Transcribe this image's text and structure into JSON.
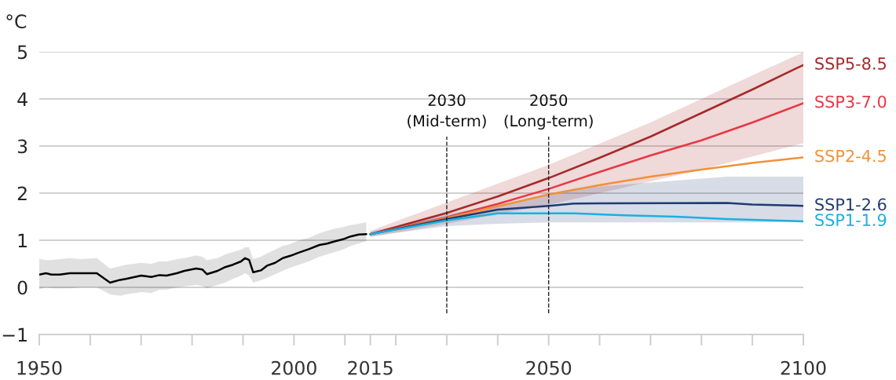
{
  "chart_data": {
    "type": "line",
    "ylabel": "°C",
    "xlim": [
      1950,
      2100
    ],
    "ylim": [
      -1,
      5
    ],
    "yticks": [
      -1,
      0,
      1,
      2,
      3,
      4,
      5
    ],
    "xticks": [
      1950,
      {
        "value": 1960,
        "label": null
      },
      {
        "value": 1970,
        "label": null
      },
      {
        "value": 1980,
        "label": null
      },
      {
        "value": 1990,
        "label": null
      },
      2000,
      {
        "value": 2010,
        "label": null
      },
      2015,
      {
        "value": 2020,
        "label": null
      },
      {
        "value": 2030,
        "label": null
      },
      {
        "value": 2040,
        "label": null
      },
      2050,
      {
        "value": 2060,
        "label": null
      },
      {
        "value": 2070,
        "label": null
      },
      {
        "value": 2080,
        "label": null
      },
      {
        "value": 2090,
        "label": null
      },
      2100
    ],
    "grid": "y",
    "legend": false,
    "marker": "none",
    "line_style": "solid",
    "series": [
      {
        "color": "#000000",
        "x": [
          1950,
          1951.3,
          1952.4,
          1954,
          1956,
          1958,
          1961.3,
          1963.9,
          1965.9,
          1967,
          1970,
          1972,
          1973.6,
          1975,
          1977,
          1978.5,
          1980.8,
          1982,
          1982.9,
          1985,
          1986.5,
          1988,
          1989.6,
          1990.4,
          1991.2,
          1992,
          1993.5,
          1994.7,
          1996.3,
          1997.8,
          1999.3,
          2001,
          2002.9,
          2005,
          2006.5,
          2008.1,
          2009.6,
          2011.1,
          2012.7,
          2014.2
        ],
        "values": [
          0.27,
          0.3,
          0.27,
          0.27,
          0.3,
          0.3,
          0.3,
          0.1,
          0.16,
          0.18,
          0.25,
          0.22,
          0.26,
          0.25,
          0.3,
          0.35,
          0.4,
          0.38,
          0.28,
          0.35,
          0.43,
          0.48,
          0.55,
          0.62,
          0.58,
          0.32,
          0.36,
          0.46,
          0.52,
          0.62,
          0.67,
          0.74,
          0.81,
          0.9,
          0.93,
          0.98,
          1.02,
          1.08,
          1.12,
          1.13
        ],
        "lower": [
          -0.04,
          0.0,
          -0.02,
          -0.02,
          -0.02,
          0.0,
          0.0,
          -0.15,
          -0.18,
          -0.15,
          -0.1,
          -0.12,
          -0.05,
          -0.05,
          0.0,
          0.02,
          0.05,
          0.03,
          -0.02,
          0.05,
          0.1,
          0.18,
          0.25,
          0.3,
          0.25,
          0.1,
          0.15,
          0.2,
          0.28,
          0.35,
          0.42,
          0.48,
          0.55,
          0.65,
          0.7,
          0.75,
          0.8,
          0.88,
          0.93,
          0.98
        ],
        "upper": [
          0.61,
          0.58,
          0.58,
          0.6,
          0.62,
          0.6,
          0.62,
          0.4,
          0.45,
          0.48,
          0.52,
          0.5,
          0.55,
          0.55,
          0.6,
          0.62,
          0.68,
          0.65,
          0.58,
          0.62,
          0.7,
          0.75,
          0.8,
          0.85,
          0.85,
          0.6,
          0.65,
          0.72,
          0.8,
          0.88,
          0.92,
          1.0,
          1.05,
          1.15,
          1.2,
          1.25,
          1.28,
          1.32,
          1.35,
          1.38
        ]
      },
      {
        "name": "SSP5-8.5",
        "color": "#a52a2a",
        "x": [
          2015,
          2030,
          2040,
          2050,
          2060,
          2070,
          2080,
          2090,
          2100
        ],
        "values": [
          1.13,
          1.58,
          1.93,
          2.32,
          2.75,
          3.2,
          3.7,
          4.2,
          4.72
        ],
        "lower": [
          1.07,
          1.35,
          1.55,
          1.75,
          2.0,
          2.25,
          2.5,
          2.78,
          3.06
        ],
        "upper": [
          1.2,
          1.8,
          2.2,
          2.6,
          3.05,
          3.5,
          4.0,
          4.5,
          4.99
        ]
      },
      {
        "name": "SSP3-7.0",
        "color": "#e63946",
        "x": [
          2015,
          2030,
          2040,
          2050,
          2060,
          2070,
          2080,
          2090,
          2100
        ],
        "values": [
          1.13,
          1.49,
          1.77,
          2.09,
          2.45,
          2.8,
          3.12,
          3.5,
          3.91
        ]
      },
      {
        "name": "SSP2-4.5",
        "color": "#f0913a",
        "x": [
          2015,
          2030,
          2040,
          2050,
          2060,
          2070,
          2080,
          2090,
          2100
        ],
        "values": [
          1.13,
          1.47,
          1.72,
          1.97,
          2.17,
          2.35,
          2.5,
          2.64,
          2.76
        ]
      },
      {
        "name": "SSP1-2.6",
        "color": "#1f3c73",
        "x": [
          2015,
          2030,
          2040,
          2050,
          2055,
          2085,
          2090,
          2100
        ],
        "values": [
          1.13,
          1.45,
          1.65,
          1.73,
          1.78,
          1.79,
          1.76,
          1.73
        ],
        "lower": [
          1.08,
          1.3,
          1.35,
          1.38,
          1.38,
          1.38,
          1.38,
          1.39
        ],
        "upper": [
          1.18,
          1.55,
          1.75,
          1.95,
          2.1,
          2.35,
          2.35,
          2.35
        ]
      },
      {
        "name": "SSP1-1.9",
        "color": "#1ab0e0",
        "x": [
          2015,
          2030,
          2040,
          2055,
          2065,
          2075,
          2085,
          2100
        ],
        "values": [
          1.13,
          1.42,
          1.57,
          1.57,
          1.53,
          1.5,
          1.45,
          1.4
        ]
      }
    ],
    "ref_lines": [
      {
        "axis": "x",
        "value": 2030,
        "label": "2030\n(Mid-term)",
        "line_style": "dashed"
      },
      {
        "axis": "x",
        "value": 2050,
        "label": "2050\n(Long-term)",
        "line_style": "dashed"
      }
    ]
  }
}
